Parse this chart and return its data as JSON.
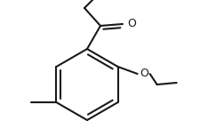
{
  "bg_color": "#ffffff",
  "line_color": "#1a1a1a",
  "line_width": 1.5,
  "fig_width": 2.26,
  "fig_height": 1.45,
  "dpi": 100
}
